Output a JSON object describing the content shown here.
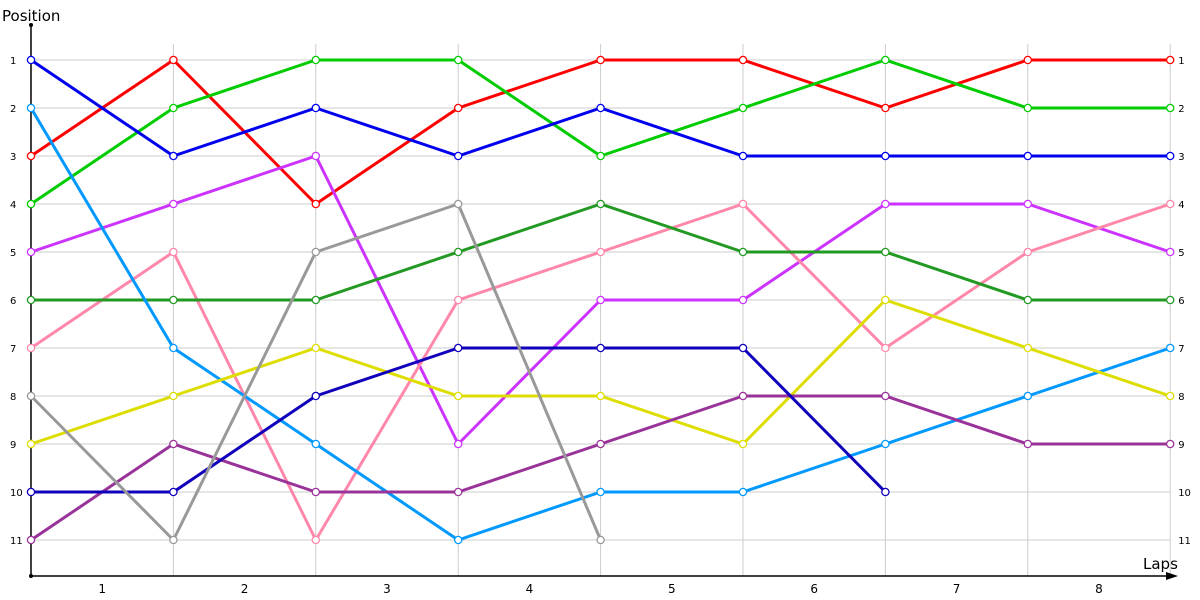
{
  "chart_data": {
    "type": "line",
    "title": "",
    "xlabel": "Laps",
    "ylabel": "Position",
    "x_tick_labels": [
      "1",
      "2",
      "3",
      "4",
      "5",
      "6",
      "7",
      "8"
    ],
    "y_tick_labels": [
      "1",
      "2",
      "3",
      "4",
      "5",
      "6",
      "7",
      "8",
      "9",
      "10",
      "11"
    ],
    "ylim": [
      11,
      1
    ],
    "grid": true,
    "legend": "none",
    "x_points": [
      0,
      1,
      2,
      3,
      4,
      5,
      6,
      7,
      8
    ],
    "series": [
      {
        "name": "red",
        "color": "#ff0000",
        "values": [
          3,
          1,
          4,
          2,
          1,
          1,
          2,
          1,
          1
        ]
      },
      {
        "name": "green",
        "color": "#00cc00",
        "values": [
          4,
          2,
          1,
          1,
          3,
          2,
          1,
          2,
          2
        ]
      },
      {
        "name": "blue",
        "color": "#0000ee",
        "values": [
          1,
          3,
          2,
          3,
          2,
          3,
          3,
          3,
          3
        ]
      },
      {
        "name": "violet",
        "color": "#cc33ff",
        "values": [
          5,
          4,
          3,
          9,
          6,
          6,
          4,
          4,
          5
        ]
      },
      {
        "name": "pink",
        "color": "#ff88aa",
        "values": [
          7,
          5,
          11,
          6,
          5,
          4,
          7,
          5,
          4
        ]
      },
      {
        "name": "dark-green",
        "color": "#229922",
        "values": [
          6,
          6,
          6,
          5,
          4,
          5,
          5,
          6,
          6
        ]
      },
      {
        "name": "sky-blue",
        "color": "#0099ff",
        "values": [
          2,
          7,
          9,
          11,
          10,
          10,
          9,
          8,
          7
        ]
      },
      {
        "name": "yellow",
        "color": "#dddd00",
        "values": [
          9,
          8,
          7,
          8,
          8,
          9,
          6,
          7,
          8
        ]
      },
      {
        "name": "purple",
        "color": "#993399",
        "values": [
          11,
          9,
          10,
          10,
          9,
          8,
          8,
          9,
          9
        ]
      },
      {
        "name": "navy",
        "color": "#1100bb",
        "values": [
          10,
          10,
          8,
          7,
          7,
          7,
          10,
          null,
          null
        ]
      },
      {
        "name": "gray",
        "color": "#999999",
        "values": [
          8,
          11,
          5,
          4,
          11,
          null,
          null,
          null,
          null
        ]
      }
    ]
  }
}
